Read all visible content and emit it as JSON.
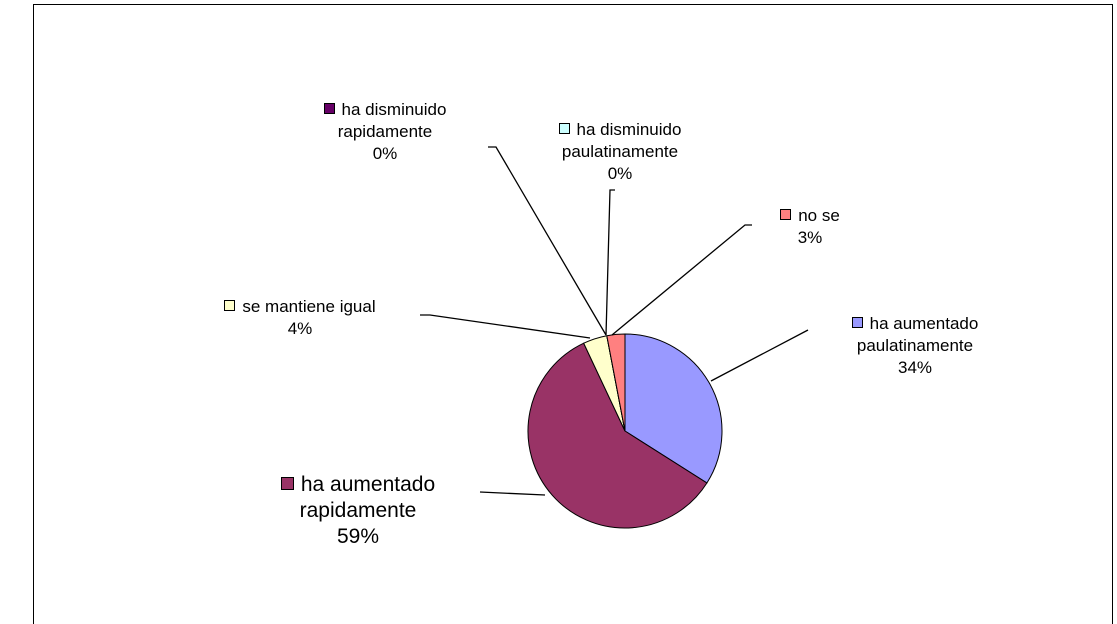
{
  "chart_data": {
    "type": "pie",
    "categories": [
      "ha aumentado paulatinamente",
      "ha aumentado rapidamente",
      "se mantiene igual",
      "ha disminuido rapidamente",
      "ha disminuido paulatinamente",
      "no se"
    ],
    "values": [
      34,
      59,
      4,
      0,
      0,
      3
    ],
    "value_labels": [
      "34%",
      "59%",
      "4%",
      "0%",
      "0%",
      "3%"
    ],
    "colors": [
      "#9999ff",
      "#993366",
      "#ffffcc",
      "#660066",
      "#ccffff",
      "#ff8080"
    ]
  }
}
